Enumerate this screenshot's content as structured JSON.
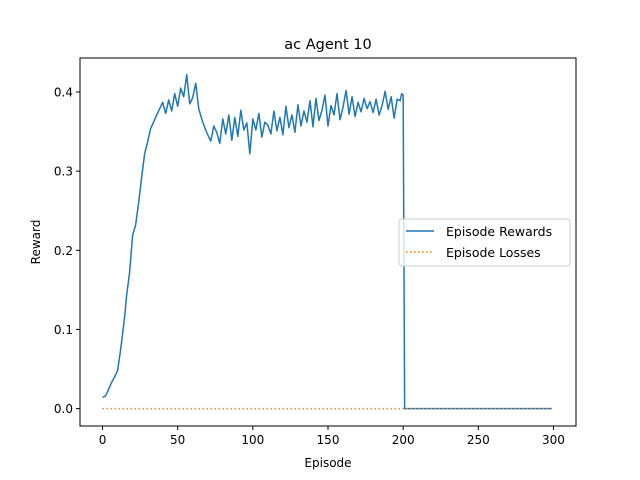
{
  "chart_data": {
    "type": "line",
    "title": "ac Agent 10",
    "xlabel": "Episode",
    "ylabel": "Reward",
    "xlim": [
      -15,
      315
    ],
    "ylim": [
      -0.022,
      0.443
    ],
    "xticks": [
      0,
      50,
      100,
      150,
      200,
      250,
      300
    ],
    "yticks": [
      0.0,
      0.1,
      0.2,
      0.3,
      0.4
    ],
    "ytick_labels": [
      "0.0",
      "0.1",
      "0.2",
      "0.3",
      "0.4"
    ],
    "grid": false,
    "legend_position": "center-right",
    "series": [
      {
        "name": "Episode Rewards",
        "style": "solid",
        "color": "#1f77b4",
        "x": [
          0,
          2,
          4,
          6,
          8,
          10,
          12,
          14,
          15,
          16,
          18,
          20,
          22,
          24,
          26,
          28,
          30,
          32,
          34,
          36,
          38,
          40,
          42,
          44,
          46,
          48,
          50,
          52,
          54,
          56,
          58,
          60,
          62,
          64,
          66,
          68,
          70,
          72,
          74,
          76,
          78,
          80,
          82,
          84,
          86,
          88,
          90,
          92,
          94,
          96,
          98,
          100,
          102,
          104,
          106,
          108,
          110,
          112,
          114,
          116,
          118,
          120,
          122,
          124,
          126,
          128,
          130,
          132,
          134,
          136,
          138,
          140,
          142,
          144,
          146,
          148,
          150,
          152,
          154,
          156,
          158,
          160,
          162,
          164,
          166,
          168,
          170,
          172,
          174,
          176,
          178,
          180,
          182,
          184,
          186,
          188,
          190,
          192,
          194,
          196,
          198,
          199,
          200,
          201,
          210,
          250,
          299
        ],
        "values": [
          0.014,
          0.016,
          0.024,
          0.033,
          0.04,
          0.048,
          0.074,
          0.105,
          0.122,
          0.143,
          0.172,
          0.219,
          0.232,
          0.26,
          0.292,
          0.322,
          0.337,
          0.354,
          0.362,
          0.371,
          0.379,
          0.387,
          0.373,
          0.39,
          0.376,
          0.398,
          0.382,
          0.405,
          0.394,
          0.422,
          0.385,
          0.393,
          0.411,
          0.379,
          0.366,
          0.355,
          0.346,
          0.338,
          0.357,
          0.349,
          0.335,
          0.366,
          0.347,
          0.371,
          0.339,
          0.368,
          0.344,
          0.377,
          0.352,
          0.361,
          0.322,
          0.366,
          0.352,
          0.373,
          0.343,
          0.362,
          0.358,
          0.347,
          0.376,
          0.351,
          0.368,
          0.346,
          0.382,
          0.355,
          0.371,
          0.349,
          0.384,
          0.357,
          0.376,
          0.362,
          0.389,
          0.356,
          0.392,
          0.364,
          0.377,
          0.396,
          0.357,
          0.383,
          0.371,
          0.398,
          0.365,
          0.381,
          0.402,
          0.372,
          0.394,
          0.369,
          0.387,
          0.375,
          0.392,
          0.379,
          0.388,
          0.374,
          0.391,
          0.371,
          0.383,
          0.401,
          0.378,
          0.394,
          0.367,
          0.391,
          0.389,
          0.398,
          0.396,
          0.0,
          0.0,
          0.0,
          0.0
        ]
      },
      {
        "name": "Episode Losses",
        "style": "dotted",
        "color": "#ff7f0e",
        "x": [
          0,
          299
        ],
        "values": [
          0.0,
          0.0
        ]
      }
    ]
  }
}
